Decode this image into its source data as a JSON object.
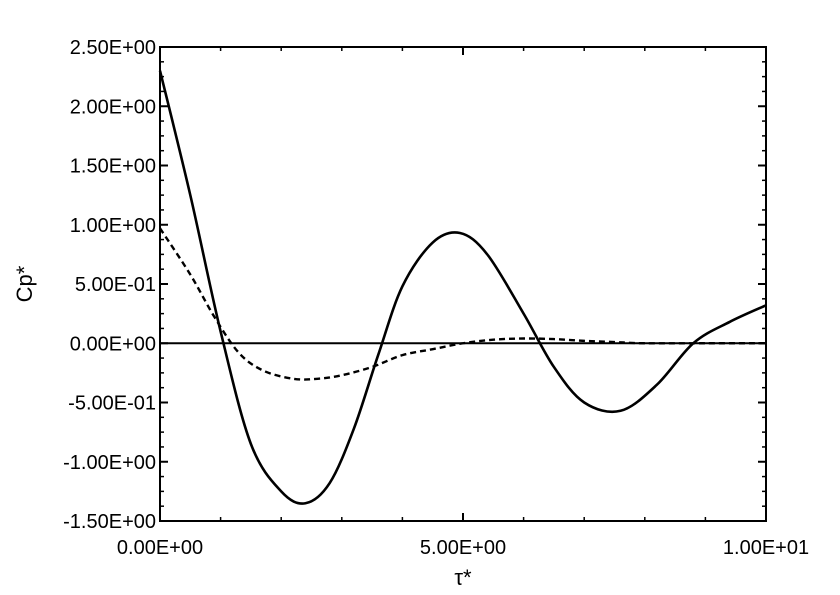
{
  "chart_data": {
    "type": "line",
    "title": "",
    "xlabel": "τ*",
    "ylabel": "Cp*",
    "xlim": [
      0,
      10
    ],
    "ylim": [
      -1.5,
      2.5
    ],
    "x_ticks": [
      0,
      5,
      10
    ],
    "x_tick_labels": [
      "0.00E+00",
      "5.00E+00",
      "1.00E+01"
    ],
    "y_ticks": [
      -1.5,
      -1.0,
      -0.5,
      0,
      0.5,
      1.0,
      1.5,
      2.0,
      2.5
    ],
    "y_tick_labels": [
      "-1.50E+00",
      "-1.00E+00",
      "-5.00E-01",
      "0.00E+00",
      "5.00E-01",
      "1.00E+00",
      "1.50E+00",
      "2.00E+00",
      "2.50E+00"
    ],
    "grid": false,
    "legend": "none",
    "zero_line": true,
    "series": [
      {
        "style": "solid",
        "color": "#000000",
        "x": [
          0,
          0.5,
          1.0,
          1.5,
          2.0,
          2.4,
          2.8,
          3.2,
          3.6,
          4.0,
          4.5,
          4.95,
          5.4,
          6.0,
          6.5,
          7.0,
          7.6,
          8.2,
          8.8,
          9.4,
          10
        ],
        "y": [
          2.3,
          1.25,
          0.1,
          -0.85,
          -1.25,
          -1.35,
          -1.18,
          -0.72,
          -0.1,
          0.48,
          0.85,
          0.93,
          0.75,
          0.25,
          -0.2,
          -0.5,
          -0.57,
          -0.35,
          0.0,
          0.18,
          0.32
        ]
      },
      {
        "style": "dashed",
        "color": "#000000",
        "x": [
          0,
          0.5,
          0.9,
          1.3,
          1.7,
          2.2,
          2.6,
          3.0,
          3.5,
          4.0,
          4.5,
          5.0,
          5.5,
          6.0,
          6.5,
          7.0,
          7.5,
          8.0,
          9.0,
          10
        ],
        "y": [
          0.97,
          0.58,
          0.22,
          -0.08,
          -0.23,
          -0.3,
          -0.3,
          -0.27,
          -0.2,
          -0.1,
          -0.05,
          0.0,
          0.03,
          0.04,
          0.035,
          0.02,
          0.01,
          0.0,
          0.0,
          0.0
        ]
      }
    ]
  }
}
